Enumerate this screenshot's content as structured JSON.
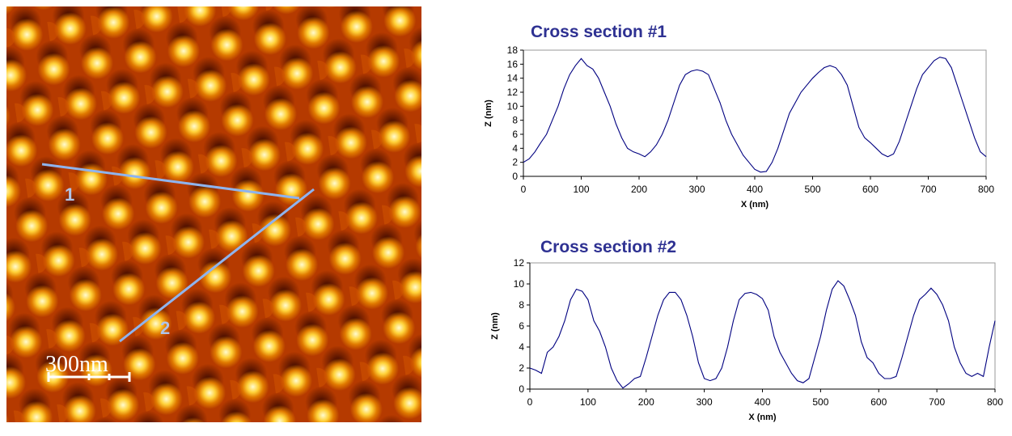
{
  "image": {
    "line_labels": [
      "1",
      "2"
    ],
    "scale_label": "300nm"
  },
  "chart_data": [
    {
      "type": "line",
      "title": "Cross section #1",
      "x_label": "X (nm)",
      "y_label": "Z (nm)",
      "x": [
        0,
        10,
        20,
        30,
        40,
        50,
        60,
        70,
        80,
        90,
        100,
        110,
        120,
        130,
        140,
        150,
        160,
        170,
        180,
        190,
        200,
        210,
        220,
        230,
        240,
        250,
        260,
        270,
        280,
        290,
        300,
        310,
        320,
        330,
        340,
        350,
        360,
        370,
        380,
        390,
        400,
        410,
        420,
        430,
        440,
        450,
        460,
        470,
        480,
        490,
        500,
        510,
        520,
        530,
        540,
        550,
        560,
        570,
        580,
        590,
        600,
        610,
        620,
        630,
        640,
        650,
        660,
        670,
        680,
        690,
        700,
        710,
        720,
        730,
        740,
        750,
        760,
        770,
        780,
        790,
        800
      ],
      "series": [
        {
          "color": "#000080",
          "values": [
            2.0,
            2.5,
            3.5,
            4.8,
            6,
            8,
            10,
            12.5,
            14.5,
            15.8,
            16.8,
            15.8,
            15.3,
            14,
            12,
            10,
            7.5,
            5.5,
            4,
            3.5,
            3.2,
            2.8,
            3.5,
            4.5,
            6,
            8,
            10.5,
            13,
            14.5,
            15,
            15.2,
            15,
            14.5,
            12.5,
            10.5,
            8,
            6,
            4.5,
            3,
            2,
            1,
            0.6,
            0.7,
            2,
            4,
            6.5,
            9,
            10.5,
            12,
            13,
            14,
            14.8,
            15.5,
            15.8,
            15.5,
            14.5,
            13,
            10,
            7,
            5.5,
            4.8,
            4,
            3.2,
            2.8,
            3.2,
            5,
            7.5,
            10,
            12.5,
            14.5,
            15.5,
            16.5,
            17,
            16.8,
            15.5,
            13,
            10.5,
            8,
            5.5,
            3.5,
            2.8
          ]
        }
      ],
      "xlim": [
        0,
        800
      ],
      "xticks": [
        0,
        100,
        200,
        300,
        400,
        500,
        600,
        700,
        800
      ],
      "ylim": [
        0,
        18
      ],
      "yticks": [
        0,
        2,
        4,
        6,
        8,
        10,
        12,
        14,
        16,
        18
      ]
    },
    {
      "type": "line",
      "title": "Cross section #2",
      "x_label": "X (nm)",
      "y_label": "Z (nm)",
      "x": [
        0,
        10,
        20,
        30,
        40,
        50,
        60,
        70,
        80,
        90,
        100,
        110,
        120,
        130,
        140,
        150,
        160,
        170,
        180,
        190,
        200,
        210,
        220,
        230,
        240,
        250,
        260,
        270,
        280,
        290,
        300,
        310,
        320,
        330,
        340,
        350,
        360,
        370,
        380,
        390,
        400,
        410,
        420,
        430,
        440,
        450,
        460,
        470,
        480,
        490,
        500,
        510,
        520,
        530,
        540,
        550,
        560,
        570,
        580,
        590,
        600,
        610,
        620,
        630,
        640,
        650,
        660,
        670,
        680,
        690,
        700,
        710,
        720,
        730,
        740,
        750,
        760,
        770,
        780,
        790,
        800
      ],
      "series": [
        {
          "color": "#000080",
          "values": [
            2,
            1.8,
            1.5,
            3.5,
            4,
            5,
            6.5,
            8.5,
            9.5,
            9.3,
            8.5,
            6.5,
            5.5,
            4,
            2,
            0.8,
            0.1,
            0.5,
            1,
            1.2,
            3,
            5,
            7,
            8.5,
            9.2,
            9.2,
            8.5,
            7,
            5,
            2.5,
            1,
            0.8,
            1,
            2,
            4,
            6.5,
            8.5,
            9.1,
            9.2,
            9,
            8.6,
            7.5,
            5,
            3.5,
            2.5,
            1.5,
            0.8,
            0.6,
            1,
            3,
            5,
            7.5,
            9.5,
            10.3,
            9.8,
            8.5,
            7,
            4.5,
            3,
            2.5,
            1.5,
            1,
            1,
            1.2,
            3,
            5,
            7,
            8.5,
            9,
            9.6,
            9,
            8,
            6.5,
            4,
            2.5,
            1.5,
            1.2,
            1.5,
            1.2,
            4,
            6.5
          ]
        }
      ],
      "xlim": [
        0,
        800
      ],
      "xticks": [
        0,
        100,
        200,
        300,
        400,
        500,
        600,
        700,
        800
      ],
      "ylim": [
        0,
        12
      ],
      "yticks": [
        0,
        2,
        4,
        6,
        8,
        10,
        12
      ]
    }
  ]
}
